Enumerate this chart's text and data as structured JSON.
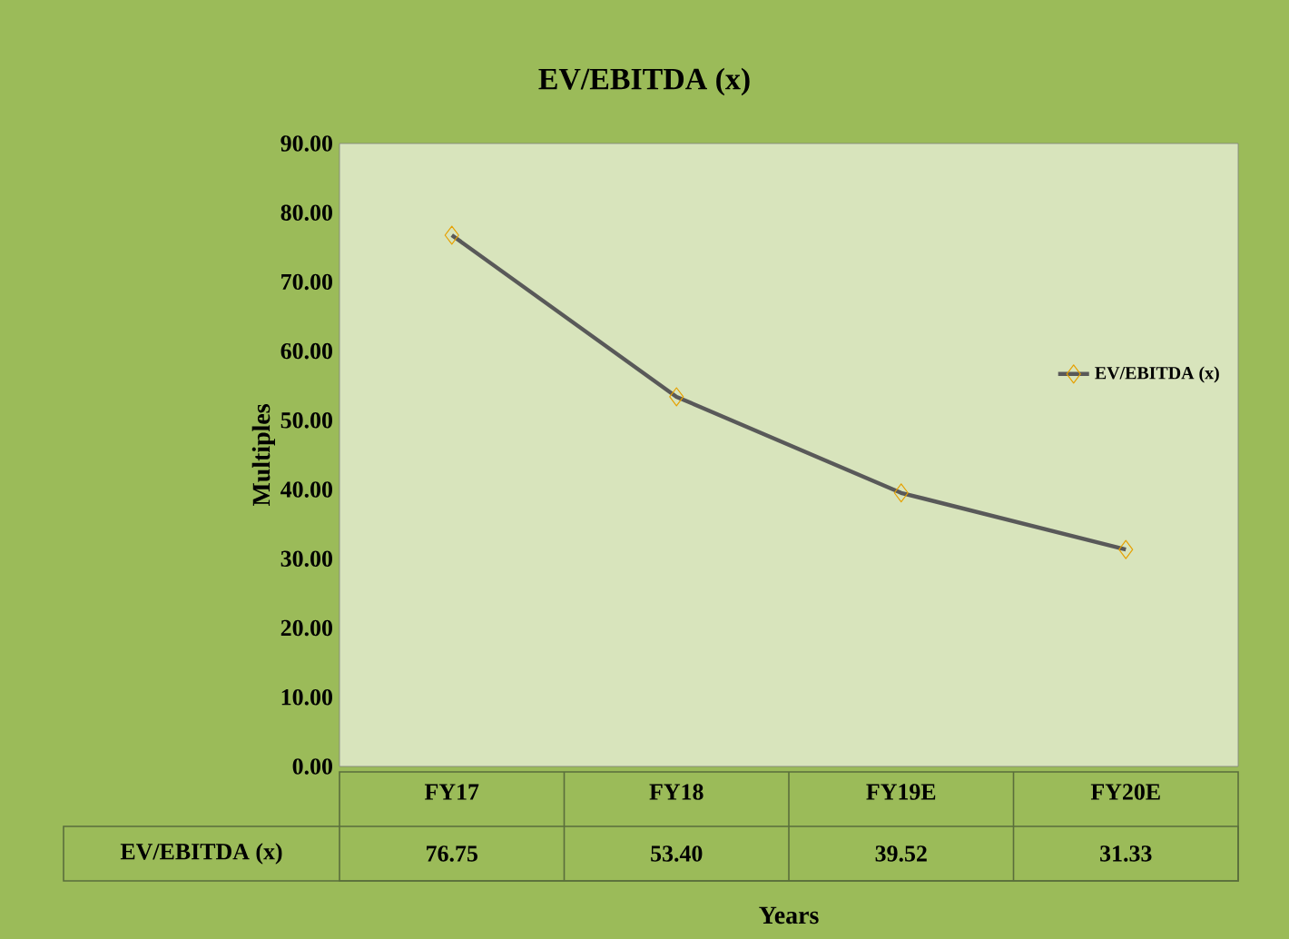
{
  "chart_data": {
    "type": "line",
    "title": "EV/EBITDA (x)",
    "xlabel": "Years",
    "ylabel": "Multiples",
    "categories": [
      "FY17",
      "FY18",
      "FY19E",
      "FY20E"
    ],
    "series": [
      {
        "name": "EV/EBITDA (x)",
        "color": "#595959",
        "values": [
          76.75,
          53.4,
          39.52,
          31.33
        ],
        "value_labels": [
          "76.75",
          "53.40",
          "39.52",
          "31.33"
        ]
      }
    ],
    "ylim": [
      0,
      90
    ],
    "yticks": [
      {
        "value": 0,
        "label": "0.00"
      },
      {
        "value": 10,
        "label": "10.00"
      },
      {
        "value": 20,
        "label": "20.00"
      },
      {
        "value": 30,
        "label": "30.00"
      },
      {
        "value": 40,
        "label": "40.00"
      },
      {
        "value": 50,
        "label": "50.00"
      },
      {
        "value": 60,
        "label": "60.00"
      },
      {
        "value": 70,
        "label": "70.00"
      },
      {
        "value": 80,
        "label": "80.00"
      },
      {
        "value": 90,
        "label": "90.00"
      }
    ],
    "legend": "right",
    "marker": "diamond",
    "grid": false
  }
}
